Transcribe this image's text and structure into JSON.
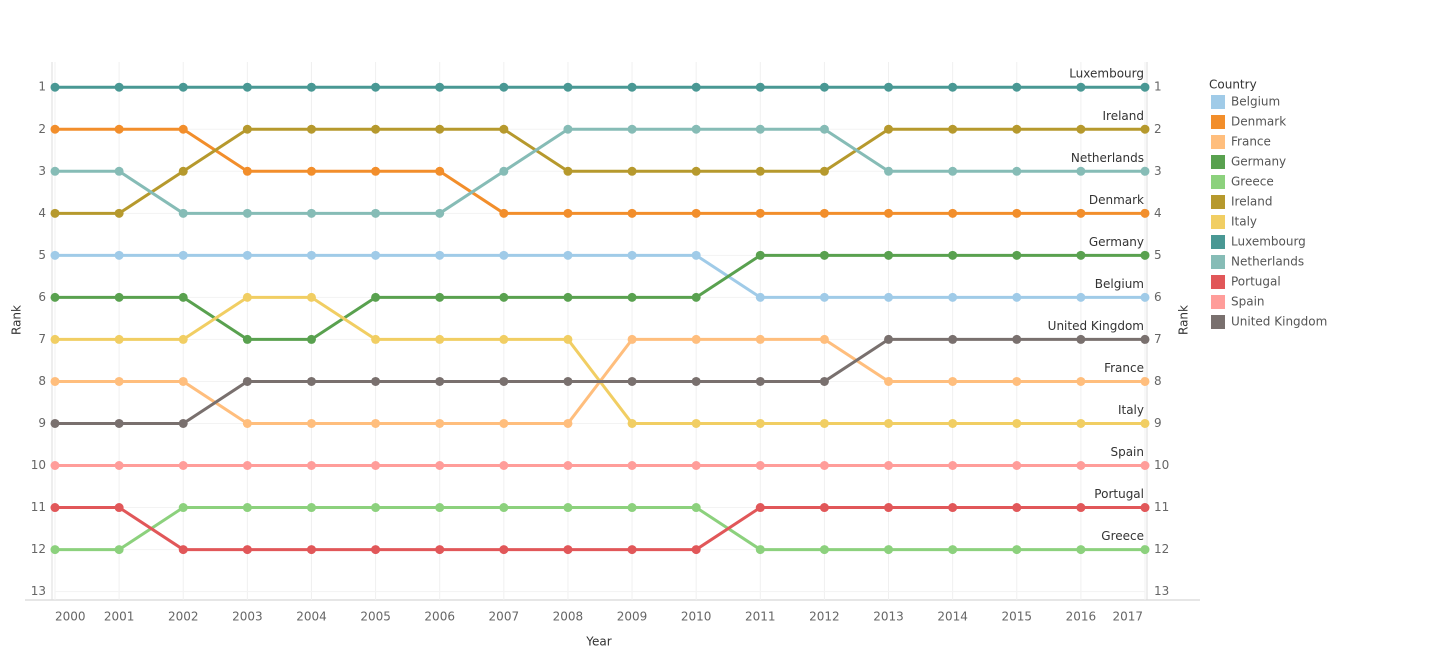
{
  "chart_data": {
    "type": "line",
    "x_label": "Year",
    "y_label": "Rank",
    "y2_label": "Rank",
    "legend_title": "Country",
    "x": [
      2000,
      2001,
      2002,
      2003,
      2004,
      2005,
      2006,
      2007,
      2008,
      2009,
      2010,
      2011,
      2012,
      2013,
      2014,
      2015,
      2016,
      2017
    ],
    "xlim": [
      2000,
      2017
    ],
    "xticks": [
      2000,
      2001,
      2002,
      2003,
      2004,
      2005,
      2006,
      2007,
      2008,
      2009,
      2010,
      2011,
      2012,
      2013,
      2014,
      2015,
      2016,
      2017
    ],
    "ylim": [
      0.4,
      13.2
    ],
    "yticks": [
      1,
      2,
      3,
      4,
      5,
      6,
      7,
      8,
      9,
      10,
      11,
      12,
      13
    ],
    "y_reversed": true,
    "y2lim": [
      0.4,
      13.2
    ],
    "y2ticks": [
      1,
      2,
      3,
      4,
      5,
      6,
      7,
      8,
      9,
      10,
      11,
      12,
      13
    ],
    "grid": true,
    "legend": "right",
    "series": [
      {
        "name": "Belgium",
        "color": "#a0cbe8",
        "values": [
          5,
          5,
          5,
          5,
          5,
          5,
          5,
          5,
          5,
          5,
          5,
          6,
          6,
          6,
          6,
          6,
          6,
          6
        ]
      },
      {
        "name": "Denmark",
        "color": "#f28e2b",
        "values": [
          2,
          2,
          2,
          3,
          3,
          3,
          3,
          4,
          4,
          4,
          4,
          4,
          4,
          4,
          4,
          4,
          4,
          4
        ]
      },
      {
        "name": "France",
        "color": "#ffbe7d",
        "values": [
          8,
          8,
          8,
          9,
          9,
          9,
          9,
          9,
          9,
          7,
          7,
          7,
          7,
          8,
          8,
          8,
          8,
          8
        ]
      },
      {
        "name": "Germany",
        "color": "#59a14f",
        "values": [
          6,
          6,
          6,
          7,
          7,
          6,
          6,
          6,
          6,
          6,
          6,
          5,
          5,
          5,
          5,
          5,
          5,
          5
        ]
      },
      {
        "name": "Greece",
        "color": "#8cd17d",
        "values": [
          12,
          12,
          11,
          11,
          11,
          11,
          11,
          11,
          11,
          11,
          11,
          12,
          12,
          12,
          12,
          12,
          12,
          12
        ]
      },
      {
        "name": "Ireland",
        "color": "#b6992d",
        "values": [
          4,
          4,
          3,
          2,
          2,
          2,
          2,
          2,
          3,
          3,
          3,
          3,
          3,
          2,
          2,
          2,
          2,
          2
        ]
      },
      {
        "name": "Italy",
        "color": "#f1ce63",
        "values": [
          7,
          7,
          7,
          6,
          6,
          7,
          7,
          7,
          7,
          9,
          9,
          9,
          9,
          9,
          9,
          9,
          9,
          9
        ]
      },
      {
        "name": "Luxembourg",
        "color": "#499894",
        "values": [
          1,
          1,
          1,
          1,
          1,
          1,
          1,
          1,
          1,
          1,
          1,
          1,
          1,
          1,
          1,
          1,
          1,
          1
        ]
      },
      {
        "name": "Netherlands",
        "color": "#86bcb6",
        "values": [
          3,
          3,
          4,
          4,
          4,
          4,
          4,
          3,
          2,
          2,
          2,
          2,
          2,
          3,
          3,
          3,
          3,
          3
        ]
      },
      {
        "name": "Portugal",
        "color": "#e15759",
        "values": [
          11,
          11,
          12,
          12,
          12,
          12,
          12,
          12,
          12,
          12,
          12,
          11,
          11,
          11,
          11,
          11,
          11,
          11
        ]
      },
      {
        "name": "Spain",
        "color": "#ff9d9a",
        "values": [
          10,
          10,
          10,
          10,
          10,
          10,
          10,
          10,
          10,
          10,
          10,
          10,
          10,
          10,
          10,
          10,
          10,
          10
        ]
      },
      {
        "name": "United Kingdom",
        "color": "#79706e",
        "values": [
          9,
          9,
          9,
          8,
          8,
          8,
          8,
          8,
          8,
          8,
          8,
          8,
          8,
          7,
          7,
          7,
          7,
          7
        ]
      }
    ]
  }
}
